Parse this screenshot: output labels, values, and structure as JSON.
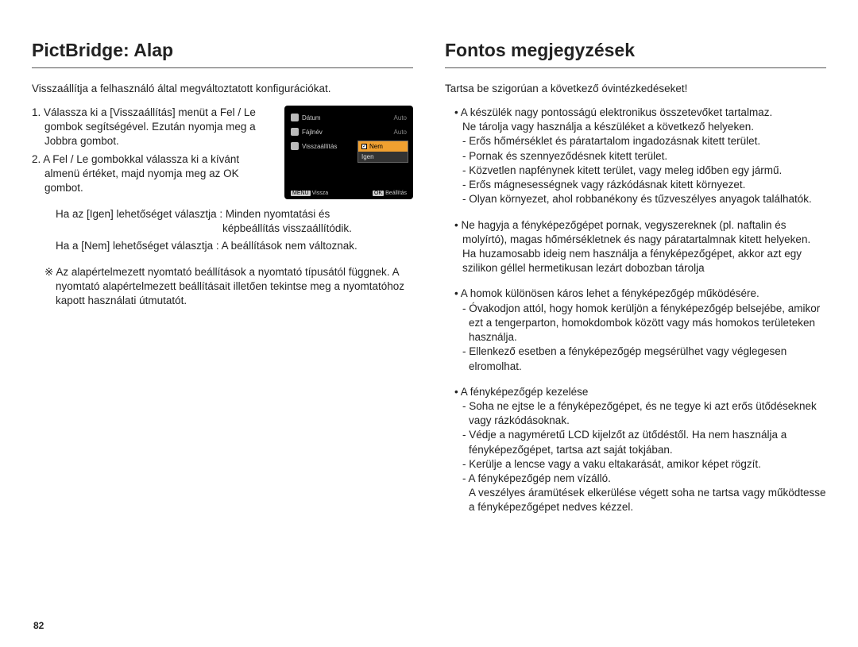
{
  "page_number": "82",
  "left": {
    "title": "PictBridge: Alap",
    "intro": "Visszaállítja a felhasználó által megváltoztatott konfigurációkat.",
    "step1": "1. Válassza ki a [Visszaállítás] menüt a Fel / Le gombok segítségével. Ezután nyomja meg a Jobbra gombot.",
    "step2": "2. A Fel / Le gombokkal válassza ki a kívánt almenü értéket, majd nyomja meg az OK gombot.",
    "res_yes_l": "Ha az [Igen] lehetőséget választja",
    "res_yes_r": ": Minden nyomtatási és",
    "res_yes_r2": "képbeállítás visszaállítódik.",
    "res_no_l": "Ha a [Nem] lehetőséget választja",
    "res_no_r": ": A beállítások nem változnak.",
    "note": "※ Az alapértelmezett nyomtató beállítások a nyomtató típusától függnek. A nyomtató alapértelmezett beállításait illetően tekintse meg a nyomtatóhoz kapott használati útmutatót.",
    "screenshot": {
      "row1_label": "Dátum",
      "row1_val": "Auto",
      "row2_label": "Fájlnév",
      "row2_val": "Auto",
      "row3_label": "Visszaállítás",
      "popup_opt1": "Nem",
      "popup_opt2": "Igen",
      "footer_l_btn": "MENU",
      "footer_l_txt": "Vissza",
      "footer_r_btn": "OK",
      "footer_r_txt": "Beállítás"
    }
  },
  "right": {
    "title": "Fontos megjegyzések",
    "intro": "Tartsa be szigorúan a következő óvintézkedéseket!",
    "g1_lead1": "• A készülék nagy pontosságú elektronikus összetevőket tartalmaz.",
    "g1_lead2": "Ne tárolja vagy használja a készüléket a következő helyeken.",
    "g1_s1": "- Erős hőmérséklet és páratartalom ingadozásnak kitett terület.",
    "g1_s2": "- Pornak és szennyeződésnek kitett terület.",
    "g1_s3": "- Közvetlen napfénynek kitett terület, vagy meleg időben egy jármű.",
    "g1_s4": "- Erős mágnesességnek vagy rázkódásnak kitett környezet.",
    "g1_s5": "- Olyan környezet, ahol robbanékony és tűzveszélyes anyagok találhatók.",
    "g2_lead": "• Ne hagyja a fényképezőgépet pornak, vegyszereknek (pl. naftalin és molyírtó), magas hőmérsékletnek és nagy páratartalmnak kitett helyeken. Ha huzamosabb ideig nem használja a fényképezőgépet, akkor azt egy szilikon géllel hermetikusan lezárt dobozban tárolja",
    "g3_lead": "• A homok különösen káros lehet a fényképezőgép működésére.",
    "g3_s1": "- Óvakodjon attól, hogy homok kerüljön a fényképezőgép belsejébe, amikor ezt a tengerparton, homokdombok között vagy más homokos területeken használja.",
    "g3_s2": "- Ellenkező esetben a fényképezőgép megsérülhet vagy véglegesen elromolhat.",
    "g4_lead": "• A fényképezőgép kezelése",
    "g4_s1": "- Soha ne ejtse le a fényképezőgépet, és ne tegye ki azt erős ütődéseknek vagy rázkódásoknak.",
    "g4_s2": "- Védje a nagyméretű LCD kijelzőt az ütődéstől. Ha nem használja a fényképezőgépet, tartsa azt saját tokjában.",
    "g4_s3": "- Kerülje a lencse vagy a vaku eltakarását, amikor képet rögzít.",
    "g4_s4": "- A fényképezőgép nem vízálló.",
    "g4_s4b": "A veszélyes áramütések elkerülése végett soha ne tartsa vagy működtesse a fényképezőgépet nedves kézzel."
  }
}
